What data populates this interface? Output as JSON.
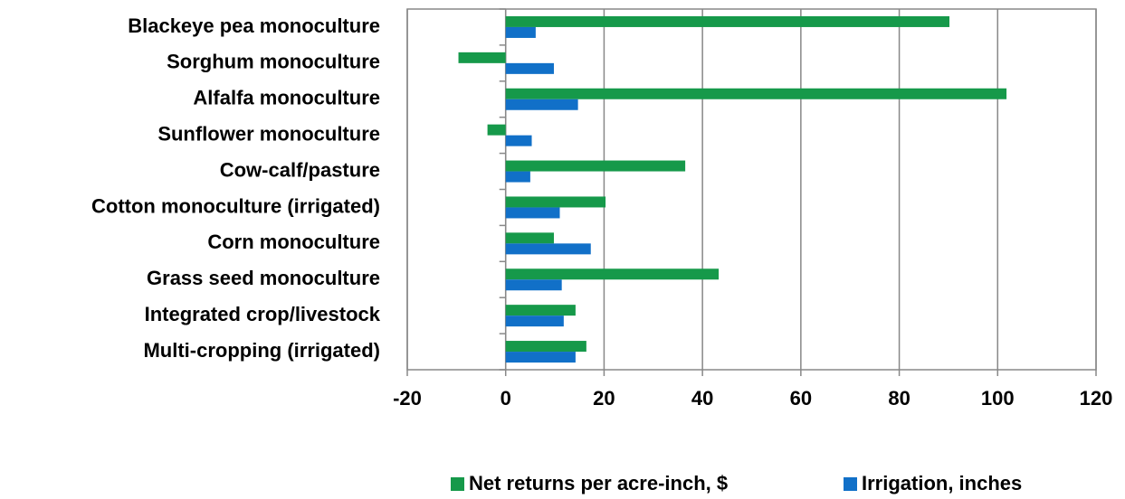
{
  "chart_data": {
    "type": "barh",
    "categories": [
      "Blackeye pea monoculture",
      "Sorghum monoculture",
      "Alfalfa monoculture",
      "Sunflower monoculture",
      "Cow-calf/pasture",
      "Cotton monoculture (irrigated)",
      "Corn monoculture",
      "Grass seed monoculture",
      "Integrated crop/livestock",
      "Multi-cropping (irrigated)"
    ],
    "series": [
      {
        "name": "Net returns per acre-inch, $",
        "color": "#16994a",
        "values": [
          90.2,
          -9.6,
          101.8,
          -3.7,
          36.5,
          20.3,
          9.8,
          43.3,
          14.2,
          16.4
        ]
      },
      {
        "name": "Irrigation, inches",
        "color": "#1170c8",
        "values": [
          6.1,
          9.8,
          14.7,
          5.3,
          5,
          11,
          17.3,
          11.4,
          11.8,
          14.2
        ]
      }
    ],
    "xlim": [
      -20,
      120
    ],
    "xticks": [
      -20,
      0,
      20,
      40,
      60,
      80,
      100,
      120
    ],
    "grid": true,
    "legend": "bottom"
  }
}
